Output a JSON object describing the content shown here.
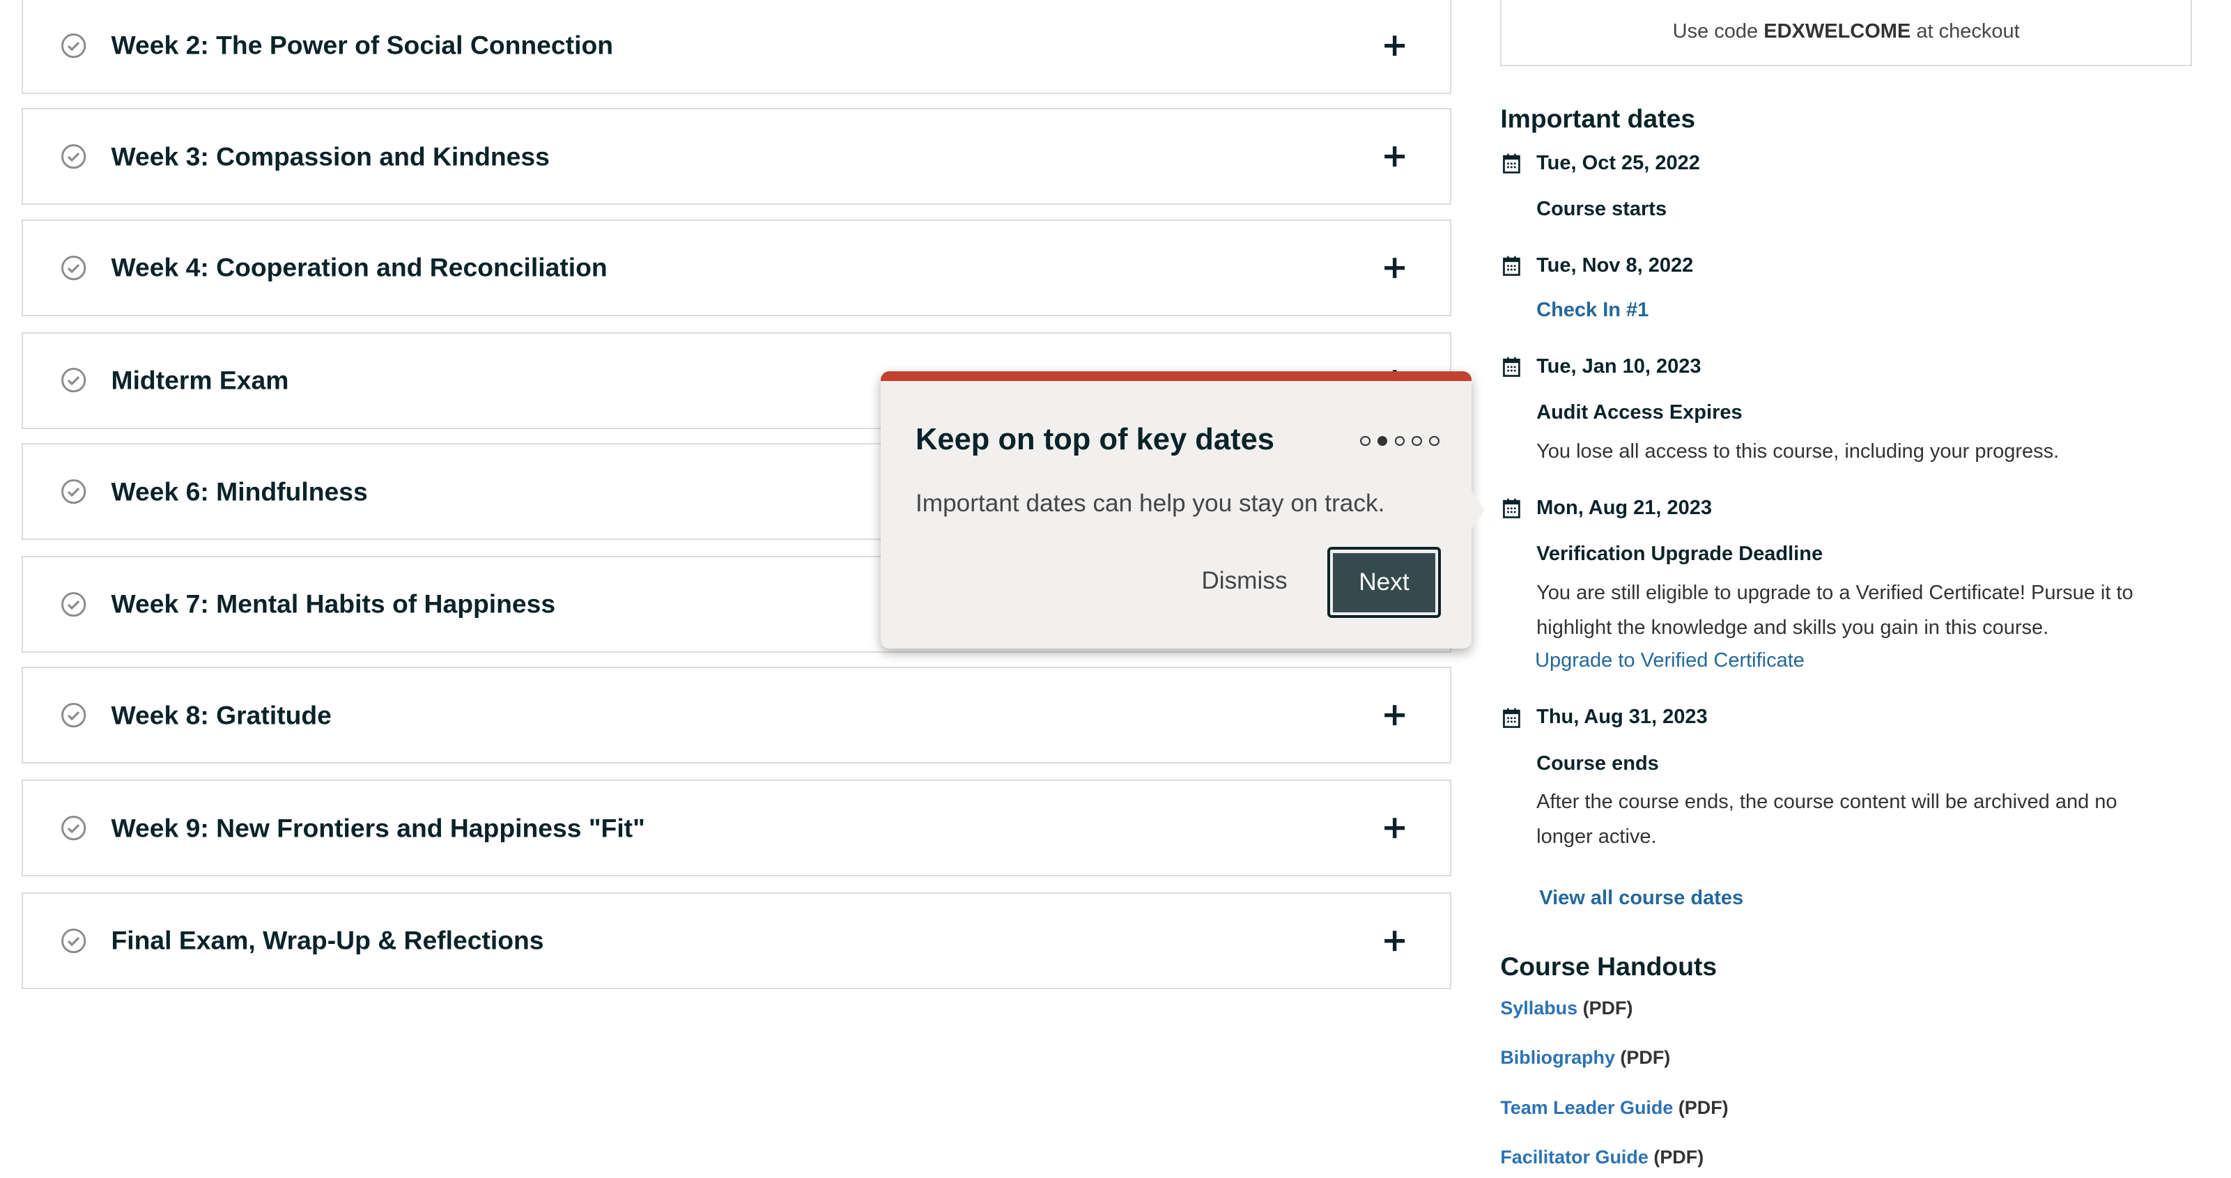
{
  "outline": {
    "sections": [
      {
        "title": "Week 2: The Power of Social Connection"
      },
      {
        "title": "Week 3: Compassion and Kindness"
      },
      {
        "title": "Week 4: Cooperation and Reconciliation"
      },
      {
        "title": "Midterm Exam"
      },
      {
        "title": "Week 6: Mindfulness"
      },
      {
        "title": "Week 7: Mental Habits of Happiness"
      },
      {
        "title": "Week 8: Gratitude"
      },
      {
        "title": "Week 9: New Frontiers and Happiness \"Fit\""
      },
      {
        "title": "Final Exam, Wrap-Up & Reflections"
      }
    ]
  },
  "promo": {
    "prefix": "Use code ",
    "code": "EDXWELCOME",
    "suffix": " at checkout"
  },
  "important_dates": {
    "heading": "Important dates",
    "items": [
      {
        "date": "Tue, Oct 25, 2022",
        "title": "Course starts"
      },
      {
        "date": "Tue, Nov 8, 2022",
        "title": "Check In #1"
      },
      {
        "date": "Tue, Jan 10, 2023",
        "title": "Audit Access Expires",
        "description": "You lose all access to this course, including your progress."
      },
      {
        "date": "Mon, Aug 21, 2023",
        "title": "Verification Upgrade Deadline",
        "description_line1": "You are still eligible to upgrade to a Verified Certificate! Pursue it to",
        "description_line2": "highlight the knowledge and skills you gain in this course.",
        "link": "Upgrade to Verified Certificate"
      },
      {
        "date": "Thu, Aug 31, 2023",
        "title": "Course ends",
        "description_line1": "After the course ends, the course content will be archived and no",
        "description_line2": "longer active."
      }
    ],
    "view_all": "View all course dates"
  },
  "handouts": {
    "heading": "Course Handouts",
    "items": [
      {
        "label": "Syllabus",
        "suffix": "(PDF)"
      },
      {
        "label": "Bibliography",
        "suffix": "(PDF)"
      },
      {
        "label": "Team Leader Guide",
        "suffix": "(PDF)"
      },
      {
        "label": "Facilitator Guide",
        "suffix": "(PDF)"
      }
    ]
  },
  "tour": {
    "title": "Keep on top of key dates",
    "body": "Important dates can help you stay on track.",
    "dismiss": "Dismiss",
    "next": "Next",
    "step_current": 2,
    "step_total": 5,
    "accent_color": "#c14233"
  }
}
